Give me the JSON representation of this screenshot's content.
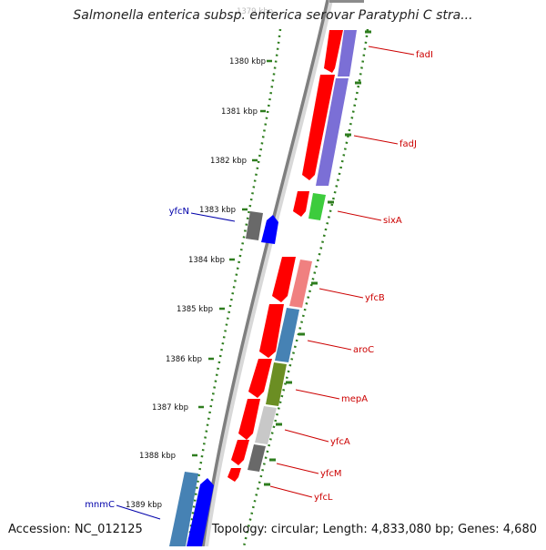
{
  "title": "Salmonella enterica subsp. enterica serovar Paratyphi C stra...",
  "accession": "Accession: NC_012125",
  "topology": "Topology: circular; Length: 4,833,080 bp; Genes: 4,680",
  "colors": {
    "backbone": "#7f7f7f",
    "ruler_tick": "#2e7d1e",
    "label_forward": "#cc0000",
    "label_reverse": "#0000aa",
    "cds_red": "#ff0000",
    "cds_blue": "#0000ff"
  },
  "ruler": {
    "ticks": [
      {
        "label": "1379 kbp",
        "faded": true
      },
      {
        "label": "1380 kbp"
      },
      {
        "label": "1381 kbp"
      },
      {
        "label": "1382 kbp"
      },
      {
        "label": "1383 kbp"
      },
      {
        "label": "1384 kbp"
      },
      {
        "label": "1385 kbp"
      },
      {
        "label": "1386 kbp"
      },
      {
        "label": "1387 kbp"
      },
      {
        "label": "1388 kbp"
      },
      {
        "label": "1389 kbp"
      }
    ]
  },
  "genes": {
    "forward_labels": [
      "fadI",
      "fadJ",
      "sixA",
      "yfcB",
      "aroC",
      "mepA",
      "yfcA",
      "yfcM",
      "yfcL"
    ],
    "reverse_labels": [
      "yfcN",
      "mnmC"
    ]
  }
}
